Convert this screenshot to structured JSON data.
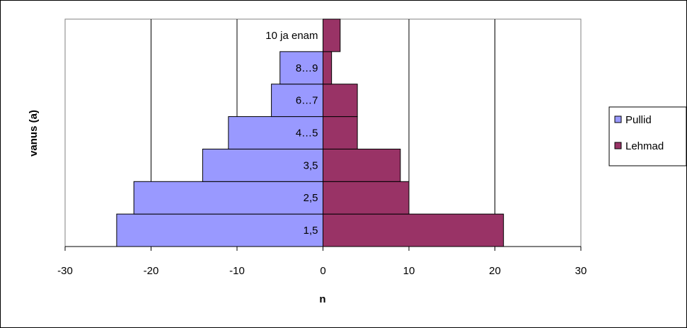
{
  "chart_data": {
    "type": "bar",
    "orientation": "horizontal",
    "stacked": true,
    "categories": [
      "1,5",
      "2,5",
      "3,5",
      "4…5",
      "6…7",
      "8…9",
      "10 ja enam"
    ],
    "series": [
      {
        "name": "Pullid",
        "values": [
          -24,
          -22,
          -14,
          -11,
          -6,
          -5,
          0
        ],
        "color": "#9999FF"
      },
      {
        "name": "Lehmad",
        "values": [
          21,
          10,
          9,
          4,
          4,
          1,
          2
        ],
        "color": "#993366"
      }
    ],
    "xlabel": "n",
    "ylabel": "vanus (a)",
    "xlim": [
      -30,
      30
    ],
    "xticks": [
      "-30",
      "-20",
      "-10",
      "0",
      "10",
      "20",
      "30"
    ],
    "grid": true,
    "legend_position": "right"
  }
}
